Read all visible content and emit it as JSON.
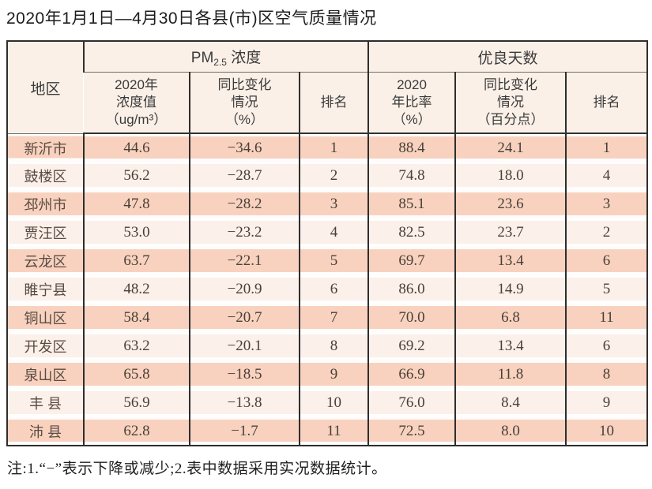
{
  "title": "2020年1月1日—4月30日各县(市)区空气质量情况",
  "note": "注:1.“−”表示下降或减少;2.表中数据采用实况数据统计。",
  "table": {
    "region_header": "地区",
    "group_pm": {
      "prefix": "PM",
      "subscript": "2.5",
      "suffix": " 浓度"
    },
    "group_good": "优良天数",
    "subheaders": {
      "pm_value": "2020年\n浓度值\n（ug/m³）",
      "pm_change": "同比变化\n情况\n（%）",
      "pm_rank": "排名",
      "good_ratio": "2020\n年比率\n（%）",
      "good_change": "同比变化\n情况\n（百分点）",
      "good_rank": "排名"
    },
    "rows": [
      {
        "region": "新沂市",
        "values": [
          "44.6",
          "−34.6",
          "1",
          "88.4",
          "24.1",
          "1"
        ]
      },
      {
        "region": "鼓楼区",
        "values": [
          "56.2",
          "−28.7",
          "2",
          "74.8",
          "18.0",
          "4"
        ]
      },
      {
        "region": "邳州市",
        "values": [
          "47.8",
          "−28.2",
          "3",
          "85.1",
          "23.6",
          "3"
        ]
      },
      {
        "region": "贾汪区",
        "values": [
          "53.0",
          "−23.2",
          "4",
          "82.5",
          "23.7",
          "2"
        ]
      },
      {
        "region": "云龙区",
        "values": [
          "63.7",
          "−22.1",
          "5",
          "69.7",
          "13.4",
          "6"
        ]
      },
      {
        "region": "睢宁县",
        "values": [
          "48.2",
          "−20.9",
          "6",
          "86.0",
          "14.9",
          "5"
        ]
      },
      {
        "region": "铜山区",
        "values": [
          "58.4",
          "−20.7",
          "7",
          "70.0",
          "6.8",
          "11"
        ]
      },
      {
        "region": "开发区",
        "values": [
          "63.2",
          "−20.1",
          "8",
          "69.2",
          "13.4",
          "6"
        ]
      },
      {
        "region": "泉山区",
        "values": [
          "65.8",
          "−18.5",
          "9",
          "66.9",
          "11.8",
          "8"
        ]
      },
      {
        "region": "丰 县",
        "values": [
          "56.9",
          "−13.8",
          "10",
          "76.0",
          "8.4",
          "9"
        ]
      },
      {
        "region": "沛 县",
        "values": [
          "62.8",
          "−1.7",
          "11",
          "72.5",
          "8.0",
          "10"
        ]
      }
    ]
  },
  "colors": {
    "row_band_odd": "#f8d2bf",
    "row_band_even": "#fcf0ea",
    "header_bg": "#fbf0e8",
    "border_dark": "#2e2e2e",
    "text_dark": "#3a3a3a"
  }
}
